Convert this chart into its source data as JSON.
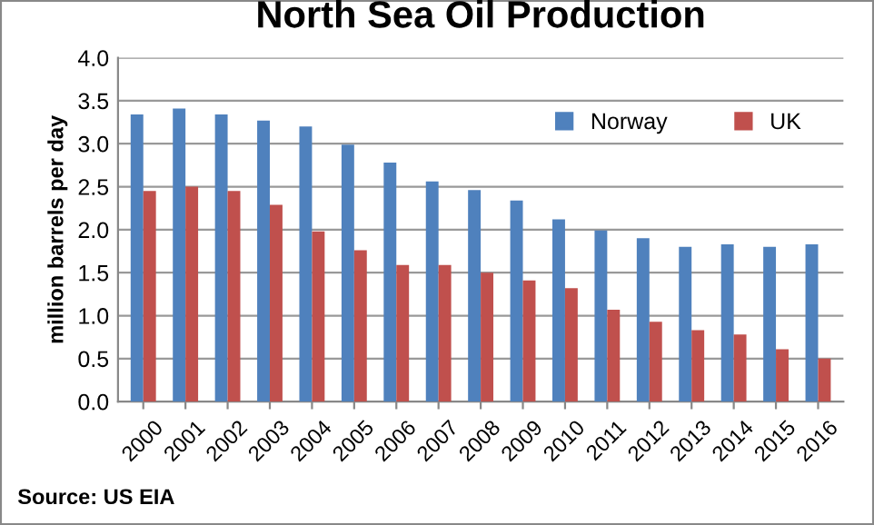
{
  "chart_data": {
    "type": "bar",
    "title": "North Sea Oil Production",
    "ylabel": "million barrels per day",
    "categories": [
      "2000",
      "2001",
      "2002",
      "2003",
      "2004",
      "2005",
      "2006",
      "2007",
      "2008",
      "2009",
      "2010",
      "2011",
      "2012",
      "2013",
      "2014",
      "2015",
      "2016"
    ],
    "series": [
      {
        "name": "Norway",
        "color": "#4f81bd",
        "values": [
          3.34,
          3.41,
          3.34,
          3.27,
          3.2,
          2.99,
          2.78,
          2.56,
          2.46,
          2.34,
          2.12,
          1.99,
          1.9,
          1.8,
          1.83,
          1.8,
          1.83
        ]
      },
      {
        "name": "UK",
        "color": "#c0504d",
        "values": [
          2.45,
          2.5,
          2.45,
          2.29,
          1.98,
          1.76,
          1.59,
          1.59,
          1.5,
          1.41,
          1.32,
          1.07,
          0.93,
          0.83,
          0.78,
          0.61,
          0.5
        ]
      }
    ],
    "ylim": [
      0,
      4
    ],
    "yticks": [
      {
        "value": 0,
        "label": "0.0"
      },
      {
        "value": 0.5,
        "label": "0.5"
      },
      {
        "value": 1,
        "label": "1.0"
      },
      {
        "value": 1.5,
        "label": "1.5"
      },
      {
        "value": 2,
        "label": "2.0"
      },
      {
        "value": 2.5,
        "label": "2.5"
      },
      {
        "value": 3,
        "label": "3.0"
      },
      {
        "value": 3.5,
        "label": "3.5"
      },
      {
        "value": 4,
        "label": "4.0"
      }
    ],
    "grid": "y",
    "legend": "top right",
    "annotations": [
      "Source: US EIA"
    ]
  }
}
